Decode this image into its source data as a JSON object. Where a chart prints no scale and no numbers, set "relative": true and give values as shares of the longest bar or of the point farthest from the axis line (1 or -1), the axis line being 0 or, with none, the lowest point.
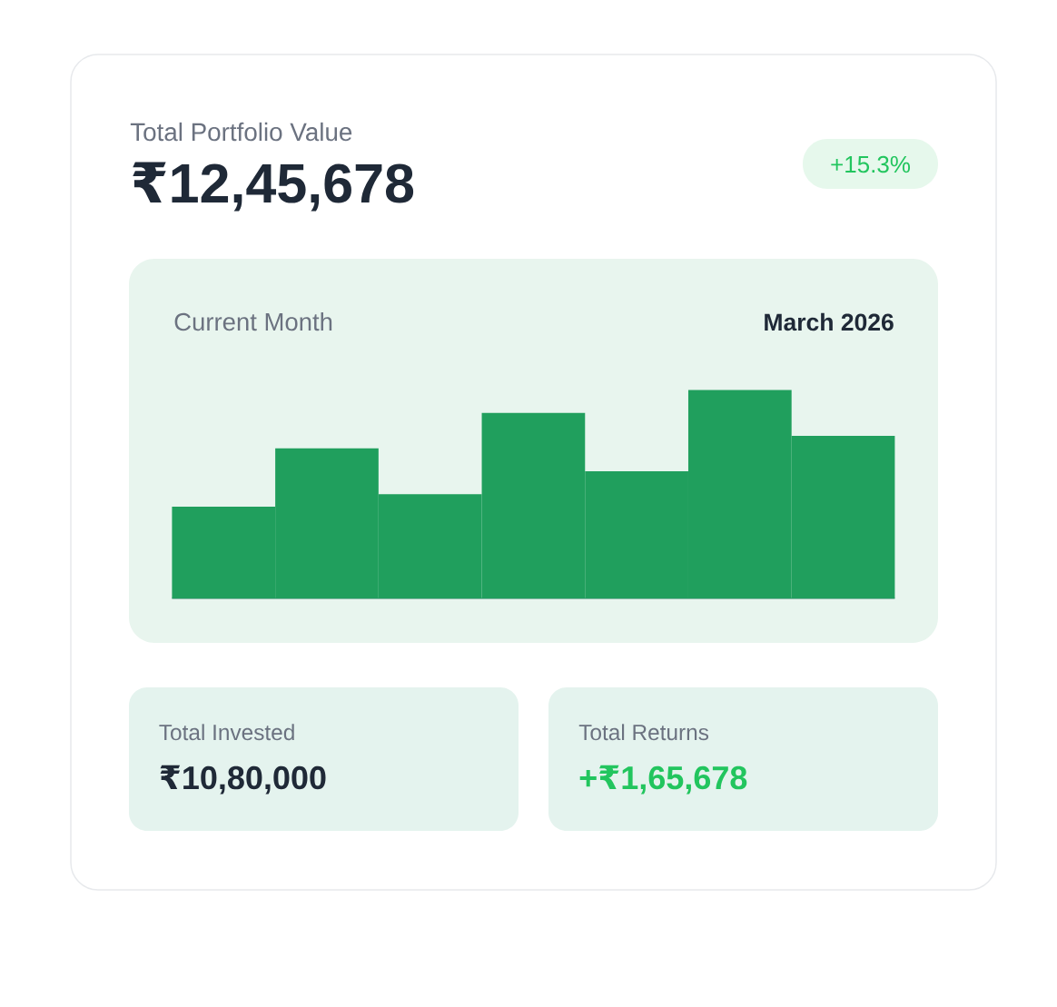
{
  "chart_data": {
    "type": "bar",
    "title": "Current Month",
    "subtitle": "March 2026",
    "categories": [
      null,
      null,
      null,
      null,
      null,
      null,
      null
    ],
    "values": [
      0.44,
      0.72,
      0.5,
      0.89,
      0.61,
      1,
      0.78
    ],
    "color": "#209f5d",
    "relative": true,
    "annotations": [
      "Total Portfolio Value",
      "₹12,45,678",
      "+15.3%",
      "Total Invested",
      "₹10,80,000",
      "Total Returns",
      "+₹1,65,678"
    ]
  }
}
